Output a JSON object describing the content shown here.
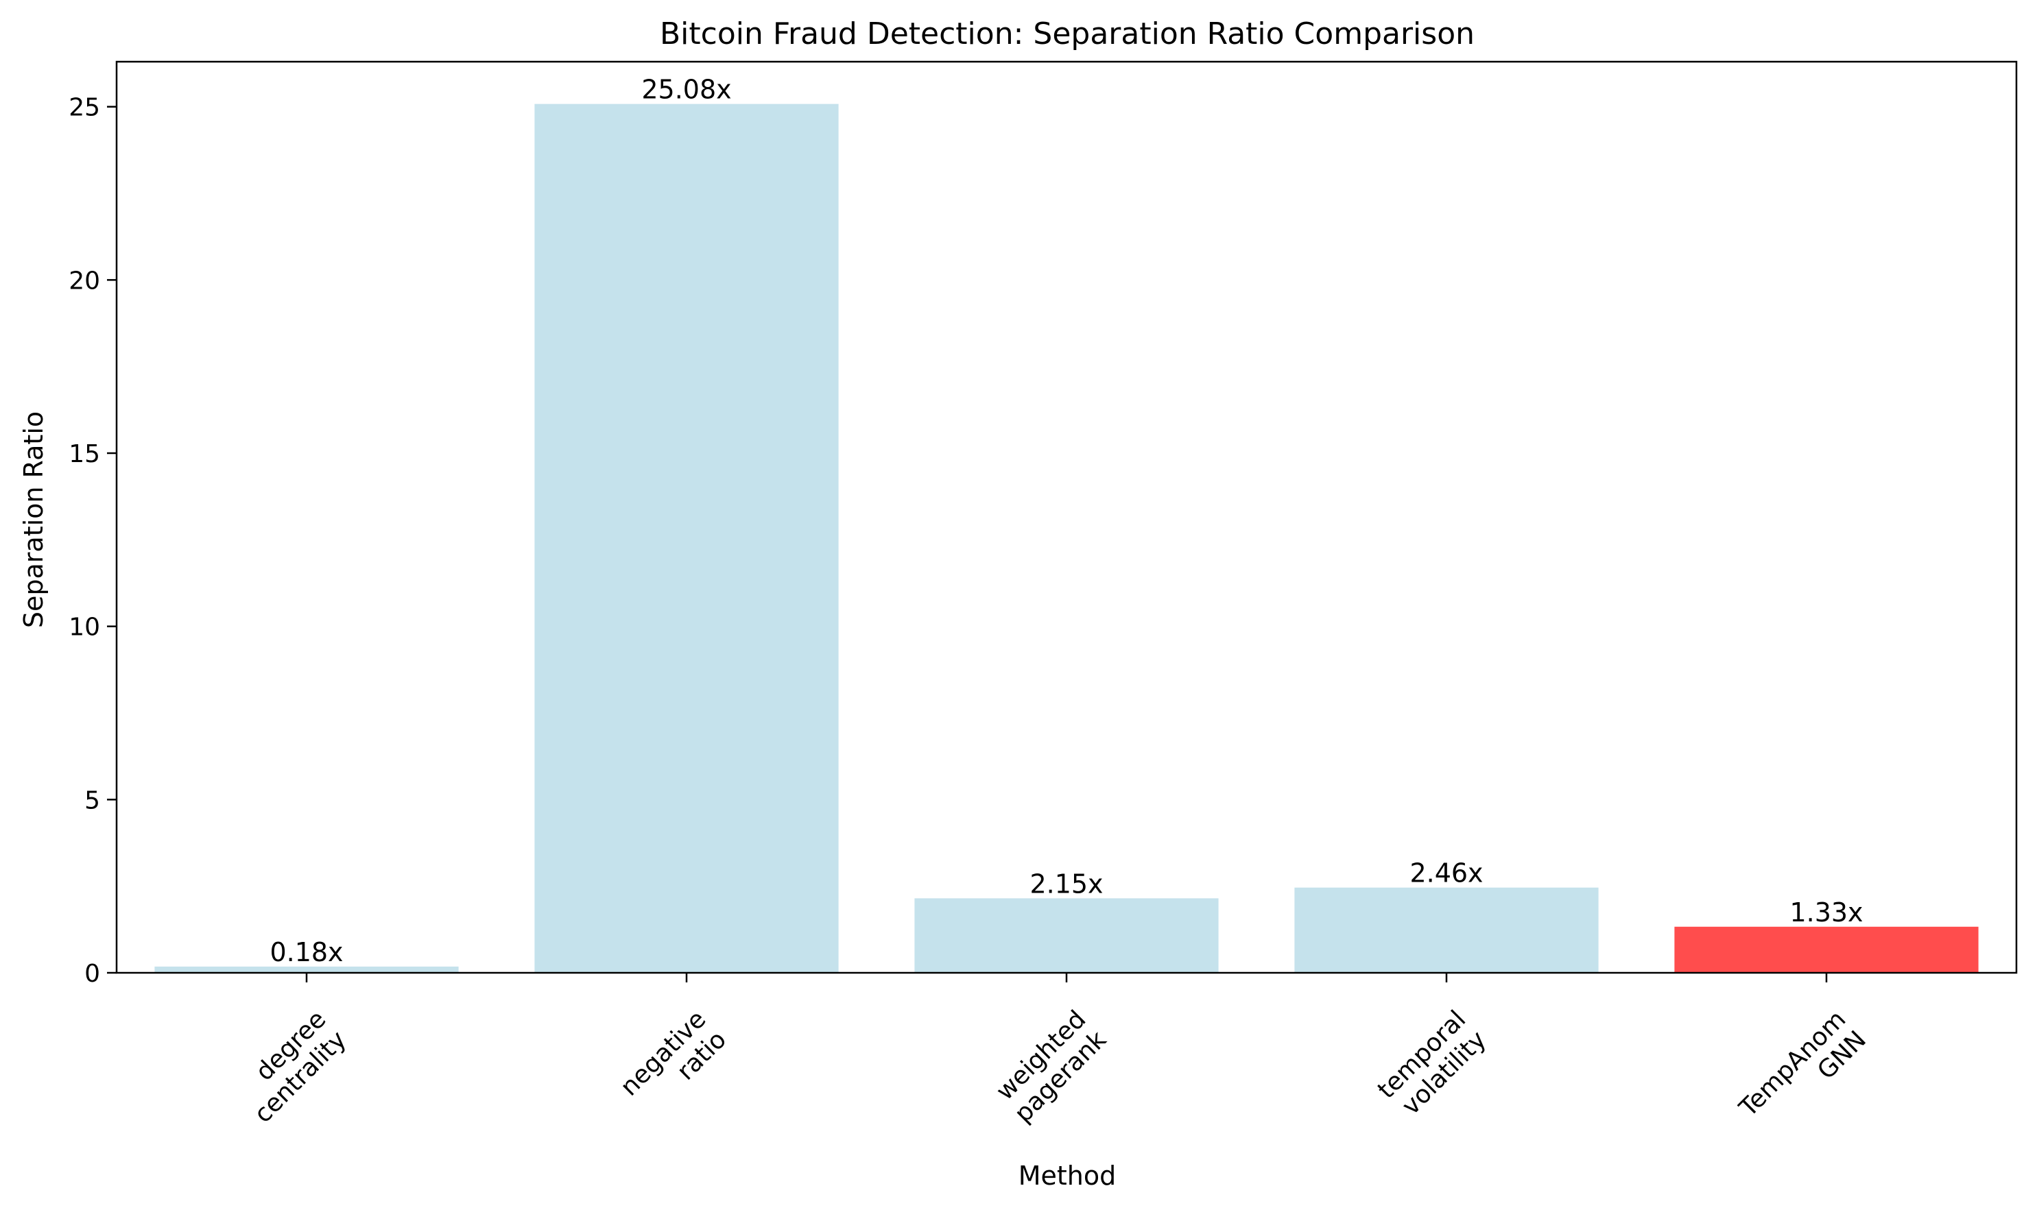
{
  "chart_data": {
    "type": "bar",
    "title": "Bitcoin Fraud Detection: Separation Ratio Comparison",
    "xlabel": "Method",
    "ylabel": "Separation Ratio",
    "categories": [
      [
        "degree",
        "centrality"
      ],
      [
        "negative",
        "ratio"
      ],
      [
        "weighted",
        "pagerank"
      ],
      [
        "temporal",
        "volatility"
      ],
      [
        "TempAnom",
        "GNN"
      ]
    ],
    "values": [
      0.18,
      25.08,
      2.15,
      2.46,
      1.33
    ],
    "value_labels": [
      "0.18x",
      "25.08x",
      "2.15x",
      "2.46x",
      "1.33x"
    ],
    "bar_colors": [
      "#c5e2ec",
      "#c5e2ec",
      "#c5e2ec",
      "#c5e2ec",
      "#ff4d4d"
    ],
    "ylim": [
      0,
      26.3
    ],
    "yticks": [
      0,
      5,
      10,
      15,
      20,
      25
    ],
    "ytick_labels": [
      "0",
      "5",
      "10",
      "15",
      "20",
      "25"
    ],
    "grid": false,
    "legend": false
  }
}
